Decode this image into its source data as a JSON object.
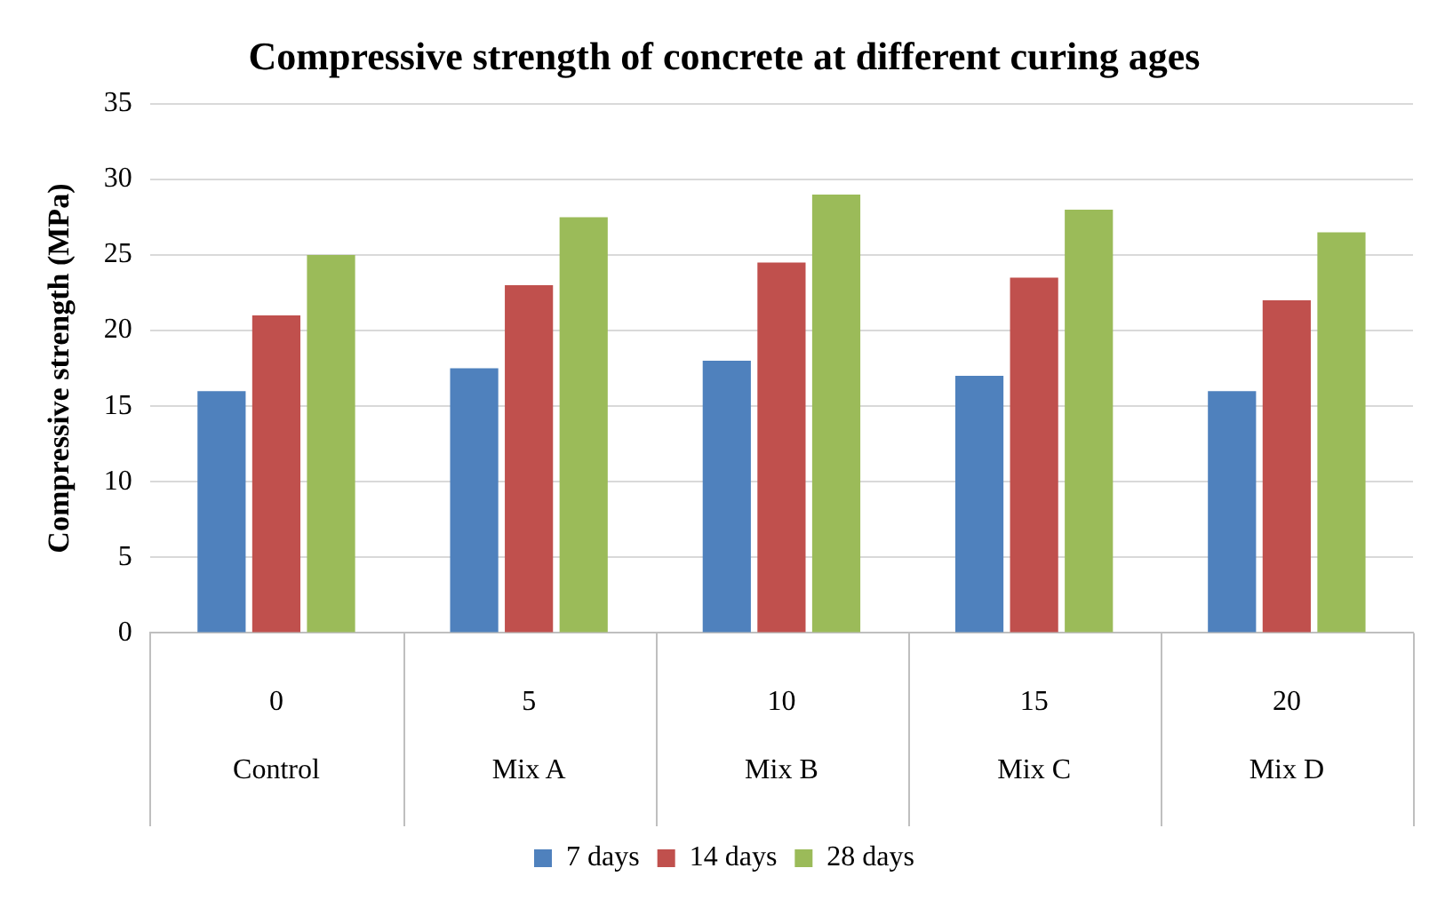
{
  "chart_data": {
    "type": "bar",
    "title": "Compressive strength of concrete at different curing ages",
    "ylabel": "Compressive strength (MPa)",
    "categories": [
      "0\nControl",
      "5\nMix A",
      "10\nMix B",
      "15\nMix C",
      "20\nMix D"
    ],
    "series": [
      {
        "name": "7 days",
        "color": "#4f81bd",
        "values": [
          16,
          17.5,
          18,
          17,
          16
        ]
      },
      {
        "name": "14 days",
        "color": "#c0504d",
        "values": [
          21,
          23,
          24.5,
          23.5,
          22
        ]
      },
      {
        "name": "28 days",
        "color": "#9bbb59",
        "values": [
          25,
          27.5,
          29,
          28,
          26.5
        ]
      }
    ],
    "ylim": [
      0,
      35
    ],
    "yticks": [
      0,
      5,
      10,
      15,
      20,
      25,
      30,
      35
    ],
    "grid": "y",
    "legend": "bottom"
  }
}
